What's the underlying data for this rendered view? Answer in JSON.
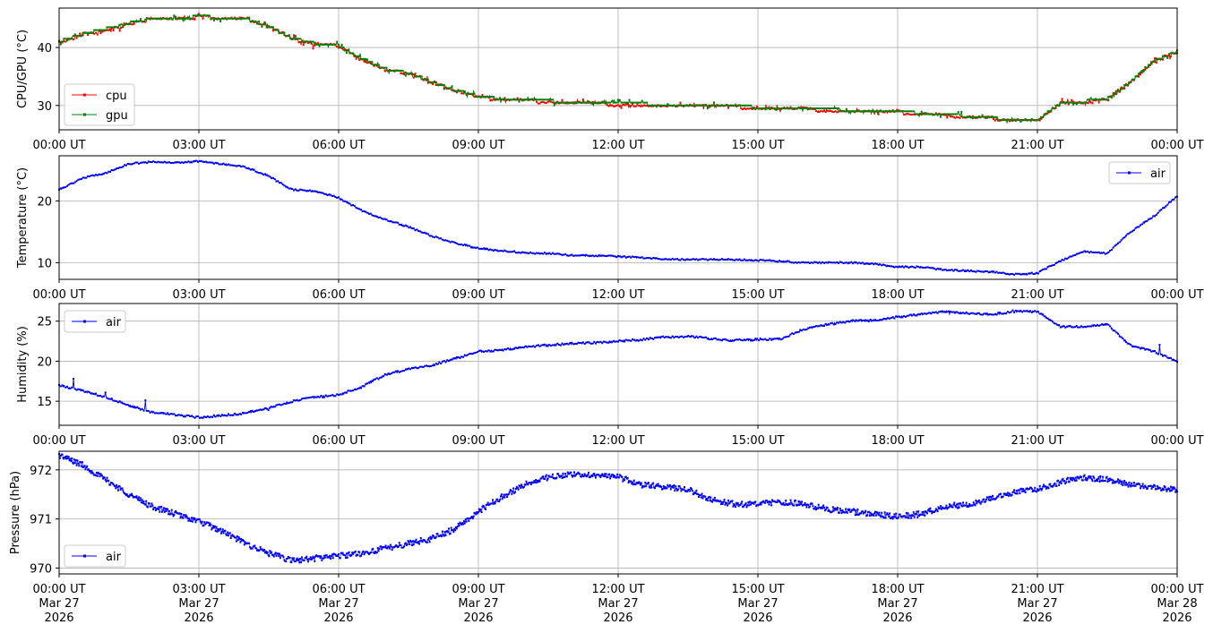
{
  "chart_data": [
    {
      "type": "scatter",
      "ylabel": "CPU/GPU (°C)",
      "ylim": [
        25.8,
        46.8
      ],
      "yticks": [
        30,
        40
      ],
      "xlim": [
        "2026-03-27 00:00",
        "2026-03-28 00:00"
      ],
      "xtick_labels": [
        "00:00 UT",
        "03:00 UT",
        "06:00 UT",
        "09:00 UT",
        "12:00 UT",
        "15:00 UT",
        "18:00 UT",
        "21:00 UT",
        "00:00 UT"
      ],
      "grid": true,
      "legend_position": "lower-left",
      "series": [
        {
          "name": "cpu",
          "color": "#ff0000",
          "x_hours": [
            0,
            0.5,
            1,
            1.5,
            2,
            2.5,
            3,
            3.5,
            4,
            4.5,
            5,
            5.5,
            6,
            6.5,
            7,
            7.5,
            8,
            8.5,
            9,
            9.5,
            10,
            10.5,
            11,
            11.5,
            12,
            12.5,
            13,
            13.5,
            14,
            14.5,
            15,
            15.5,
            16,
            16.5,
            17,
            17.5,
            18,
            18.5,
            19,
            19.5,
            20,
            20.5,
            21,
            21.5,
            22,
            22.5,
            23,
            23.5,
            24
          ],
          "values": [
            40.8,
            42.2,
            43,
            44,
            45,
            45,
            45.3,
            45.2,
            45,
            43.6,
            41.5,
            40.6,
            40.2,
            38,
            36.2,
            35.5,
            34,
            32.5,
            31.5,
            31,
            30.8,
            30.7,
            30.5,
            30.3,
            30.2,
            30.2,
            30,
            30,
            29.8,
            29.8,
            29.6,
            29.4,
            29.3,
            29.2,
            29.1,
            28.9,
            28.8,
            28.6,
            28.3,
            28.1,
            27.8,
            27.3,
            27.4,
            30.3,
            30.6,
            31,
            34,
            37.5,
            39.2
          ]
        },
        {
          "name": "gpu",
          "color": "#008000",
          "x_hours": [
            0,
            0.5,
            1,
            1.5,
            2,
            2.5,
            3,
            3.5,
            4,
            4.5,
            5,
            5.5,
            6,
            6.5,
            7,
            7.5,
            8,
            8.5,
            9,
            9.5,
            10,
            10.5,
            11,
            11.5,
            12,
            12.5,
            13,
            13.5,
            14,
            14.5,
            15,
            15.5,
            16,
            16.5,
            17,
            17.5,
            18,
            18.5,
            19,
            19.5,
            20,
            20.5,
            21,
            21.5,
            22,
            22.5,
            23,
            23.5,
            24
          ],
          "values": [
            41,
            42.3,
            43.2,
            44.2,
            45,
            45.1,
            45.3,
            45.2,
            45,
            43.7,
            41.6,
            40.7,
            40.3,
            38.1,
            36.3,
            35.6,
            34.1,
            32.6,
            31.6,
            31.1,
            30.9,
            30.8,
            30.6,
            30.4,
            30.3,
            30.3,
            30.1,
            30.1,
            29.9,
            29.9,
            29.7,
            29.5,
            29.4,
            29.3,
            29.2,
            29,
            28.9,
            28.7,
            28.4,
            28.2,
            27.9,
            27.4,
            27.5,
            30.4,
            30.7,
            31.1,
            34.1,
            37.6,
            39.3
          ]
        }
      ]
    },
    {
      "type": "line",
      "ylabel": "Temperature (°C)",
      "ylim": [
        7.3,
        27.3
      ],
      "yticks": [
        10,
        20
      ],
      "xlim": [
        "2026-03-27 00:00",
        "2026-03-28 00:00"
      ],
      "xtick_labels": [
        "00:00 UT",
        "03:00 UT",
        "06:00 UT",
        "09:00 UT",
        "12:00 UT",
        "15:00 UT",
        "18:00 UT",
        "21:00 UT",
        "00:00 UT"
      ],
      "grid": true,
      "legend_position": "upper-right",
      "series": [
        {
          "name": "air",
          "color": "#0000ff",
          "x_hours": [
            0,
            0.5,
            1,
            1.5,
            2,
            2.5,
            3,
            3.5,
            4,
            4.5,
            5,
            5.5,
            6,
            6.5,
            7,
            7.5,
            8,
            8.5,
            9,
            9.5,
            10,
            10.5,
            11,
            11.5,
            12,
            12.5,
            13,
            13.5,
            14,
            14.5,
            15,
            15.5,
            16,
            16.5,
            17,
            17.5,
            18,
            18.5,
            19,
            19.5,
            20,
            20.5,
            21,
            21.5,
            22,
            22.5,
            23,
            23.5,
            24
          ],
          "values": [
            21.8,
            23.7,
            24.5,
            26,
            26.3,
            26.2,
            26.4,
            26,
            25.5,
            24,
            21.8,
            21.6,
            20.5,
            18.4,
            17,
            15.8,
            14.3,
            13.2,
            12.3,
            11.9,
            11.6,
            11.5,
            11.2,
            11.1,
            11,
            10.8,
            10.6,
            10.5,
            10.5,
            10.5,
            10.4,
            10.2,
            10,
            10,
            10,
            9.8,
            9.3,
            9.3,
            8.8,
            8.7,
            8.5,
            8.1,
            8.3,
            10.3,
            11.8,
            11.5,
            15,
            17.5,
            20.8
          ]
        }
      ]
    },
    {
      "type": "line",
      "ylabel": "Humidity (%)",
      "ylim": [
        12,
        27.2
      ],
      "yticks": [
        15,
        20,
        25
      ],
      "xlim": [
        "2026-03-27 00:00",
        "2026-03-28 00:00"
      ],
      "xtick_labels": [
        "00:00 UT",
        "03:00 UT",
        "06:00 UT",
        "09:00 UT",
        "12:00 UT",
        "15:00 UT",
        "18:00 UT",
        "21:00 UT",
        "00:00 UT"
      ],
      "grid": true,
      "legend_position": "upper-left",
      "series": [
        {
          "name": "air",
          "color": "#0000ff",
          "x_hours": [
            0,
            0.5,
            1,
            1.5,
            2,
            2.5,
            3,
            3.5,
            4,
            4.5,
            5,
            5.5,
            6,
            6.5,
            7,
            7.5,
            8,
            8.5,
            9,
            9.5,
            10,
            10.5,
            11,
            11.5,
            12,
            12.5,
            13,
            13.5,
            14,
            14.5,
            15,
            15.5,
            16,
            16.5,
            17,
            17.5,
            18,
            18.5,
            19,
            19.5,
            20,
            20.5,
            21,
            21.5,
            22,
            22.5,
            23,
            23.5,
            24
          ],
          "values": [
            17,
            16.3,
            15.5,
            14.5,
            13.6,
            13.3,
            13,
            13.2,
            13.5,
            14.2,
            15,
            15.5,
            15.8,
            16.8,
            18.3,
            19,
            19.5,
            20.3,
            21.2,
            21.4,
            21.8,
            22,
            22.2,
            22.3,
            22.5,
            22.7,
            23,
            23.1,
            22.8,
            22.6,
            22.7,
            22.8,
            24,
            24.6,
            25,
            25.1,
            25.5,
            25.9,
            26.2,
            26,
            25.8,
            26.2,
            26.2,
            24.3,
            24.3,
            24.6,
            22,
            21.2,
            20
          ]
        }
      ]
    },
    {
      "type": "scatter",
      "ylabel": "Pressure (hPa)",
      "ylim": [
        969.88,
        972.38
      ],
      "yticks": [
        970,
        971,
        972
      ],
      "xlim": [
        "2026-03-27 00:00",
        "2026-03-28 00:00"
      ],
      "xtick_labels": [
        "00:00 UT\nMar 27\n2026",
        "03:00 UT\nMar 27\n2026",
        "06:00 UT\nMar 27\n2026",
        "09:00 UT\nMar 27\n2026",
        "12:00 UT\nMar 27\n2026",
        "15:00 UT\nMar 27\n2026",
        "18:00 UT\nMar 27\n2026",
        "21:00 UT\nMar 27\n2026",
        "00:00 UT\nMar 28\n2026"
      ],
      "grid": true,
      "legend_position": "lower-left",
      "series": [
        {
          "name": "air",
          "color": "#0000ff",
          "x_hours": [
            0,
            0.5,
            1,
            1.5,
            2,
            2.5,
            3,
            3.5,
            4,
            4.5,
            5,
            5.5,
            6,
            6.5,
            7,
            7.5,
            8,
            8.5,
            9,
            9.5,
            10,
            10.5,
            11,
            11.5,
            12,
            12.5,
            13,
            13.5,
            14,
            14.5,
            15,
            15.5,
            16,
            16.5,
            17,
            17.5,
            18,
            18.5,
            19,
            19.5,
            20,
            20.5,
            21,
            21.5,
            22,
            22.5,
            23,
            23.5,
            24
          ],
          "values": [
            972.3,
            972.1,
            971.8,
            971.5,
            971.25,
            971.1,
            970.95,
            970.75,
            970.5,
            970.3,
            970.15,
            970.2,
            970.25,
            970.3,
            970.4,
            970.5,
            970.6,
            970.8,
            971.15,
            971.45,
            971.7,
            971.85,
            971.9,
            971.9,
            971.85,
            971.7,
            971.65,
            971.6,
            971.4,
            971.3,
            971.3,
            971.35,
            971.3,
            971.2,
            971.15,
            971.1,
            971.05,
            971.1,
            971.25,
            971.3,
            971.4,
            971.55,
            971.6,
            971.75,
            971.85,
            971.8,
            971.7,
            971.65,
            971.6
          ]
        }
      ]
    }
  ]
}
